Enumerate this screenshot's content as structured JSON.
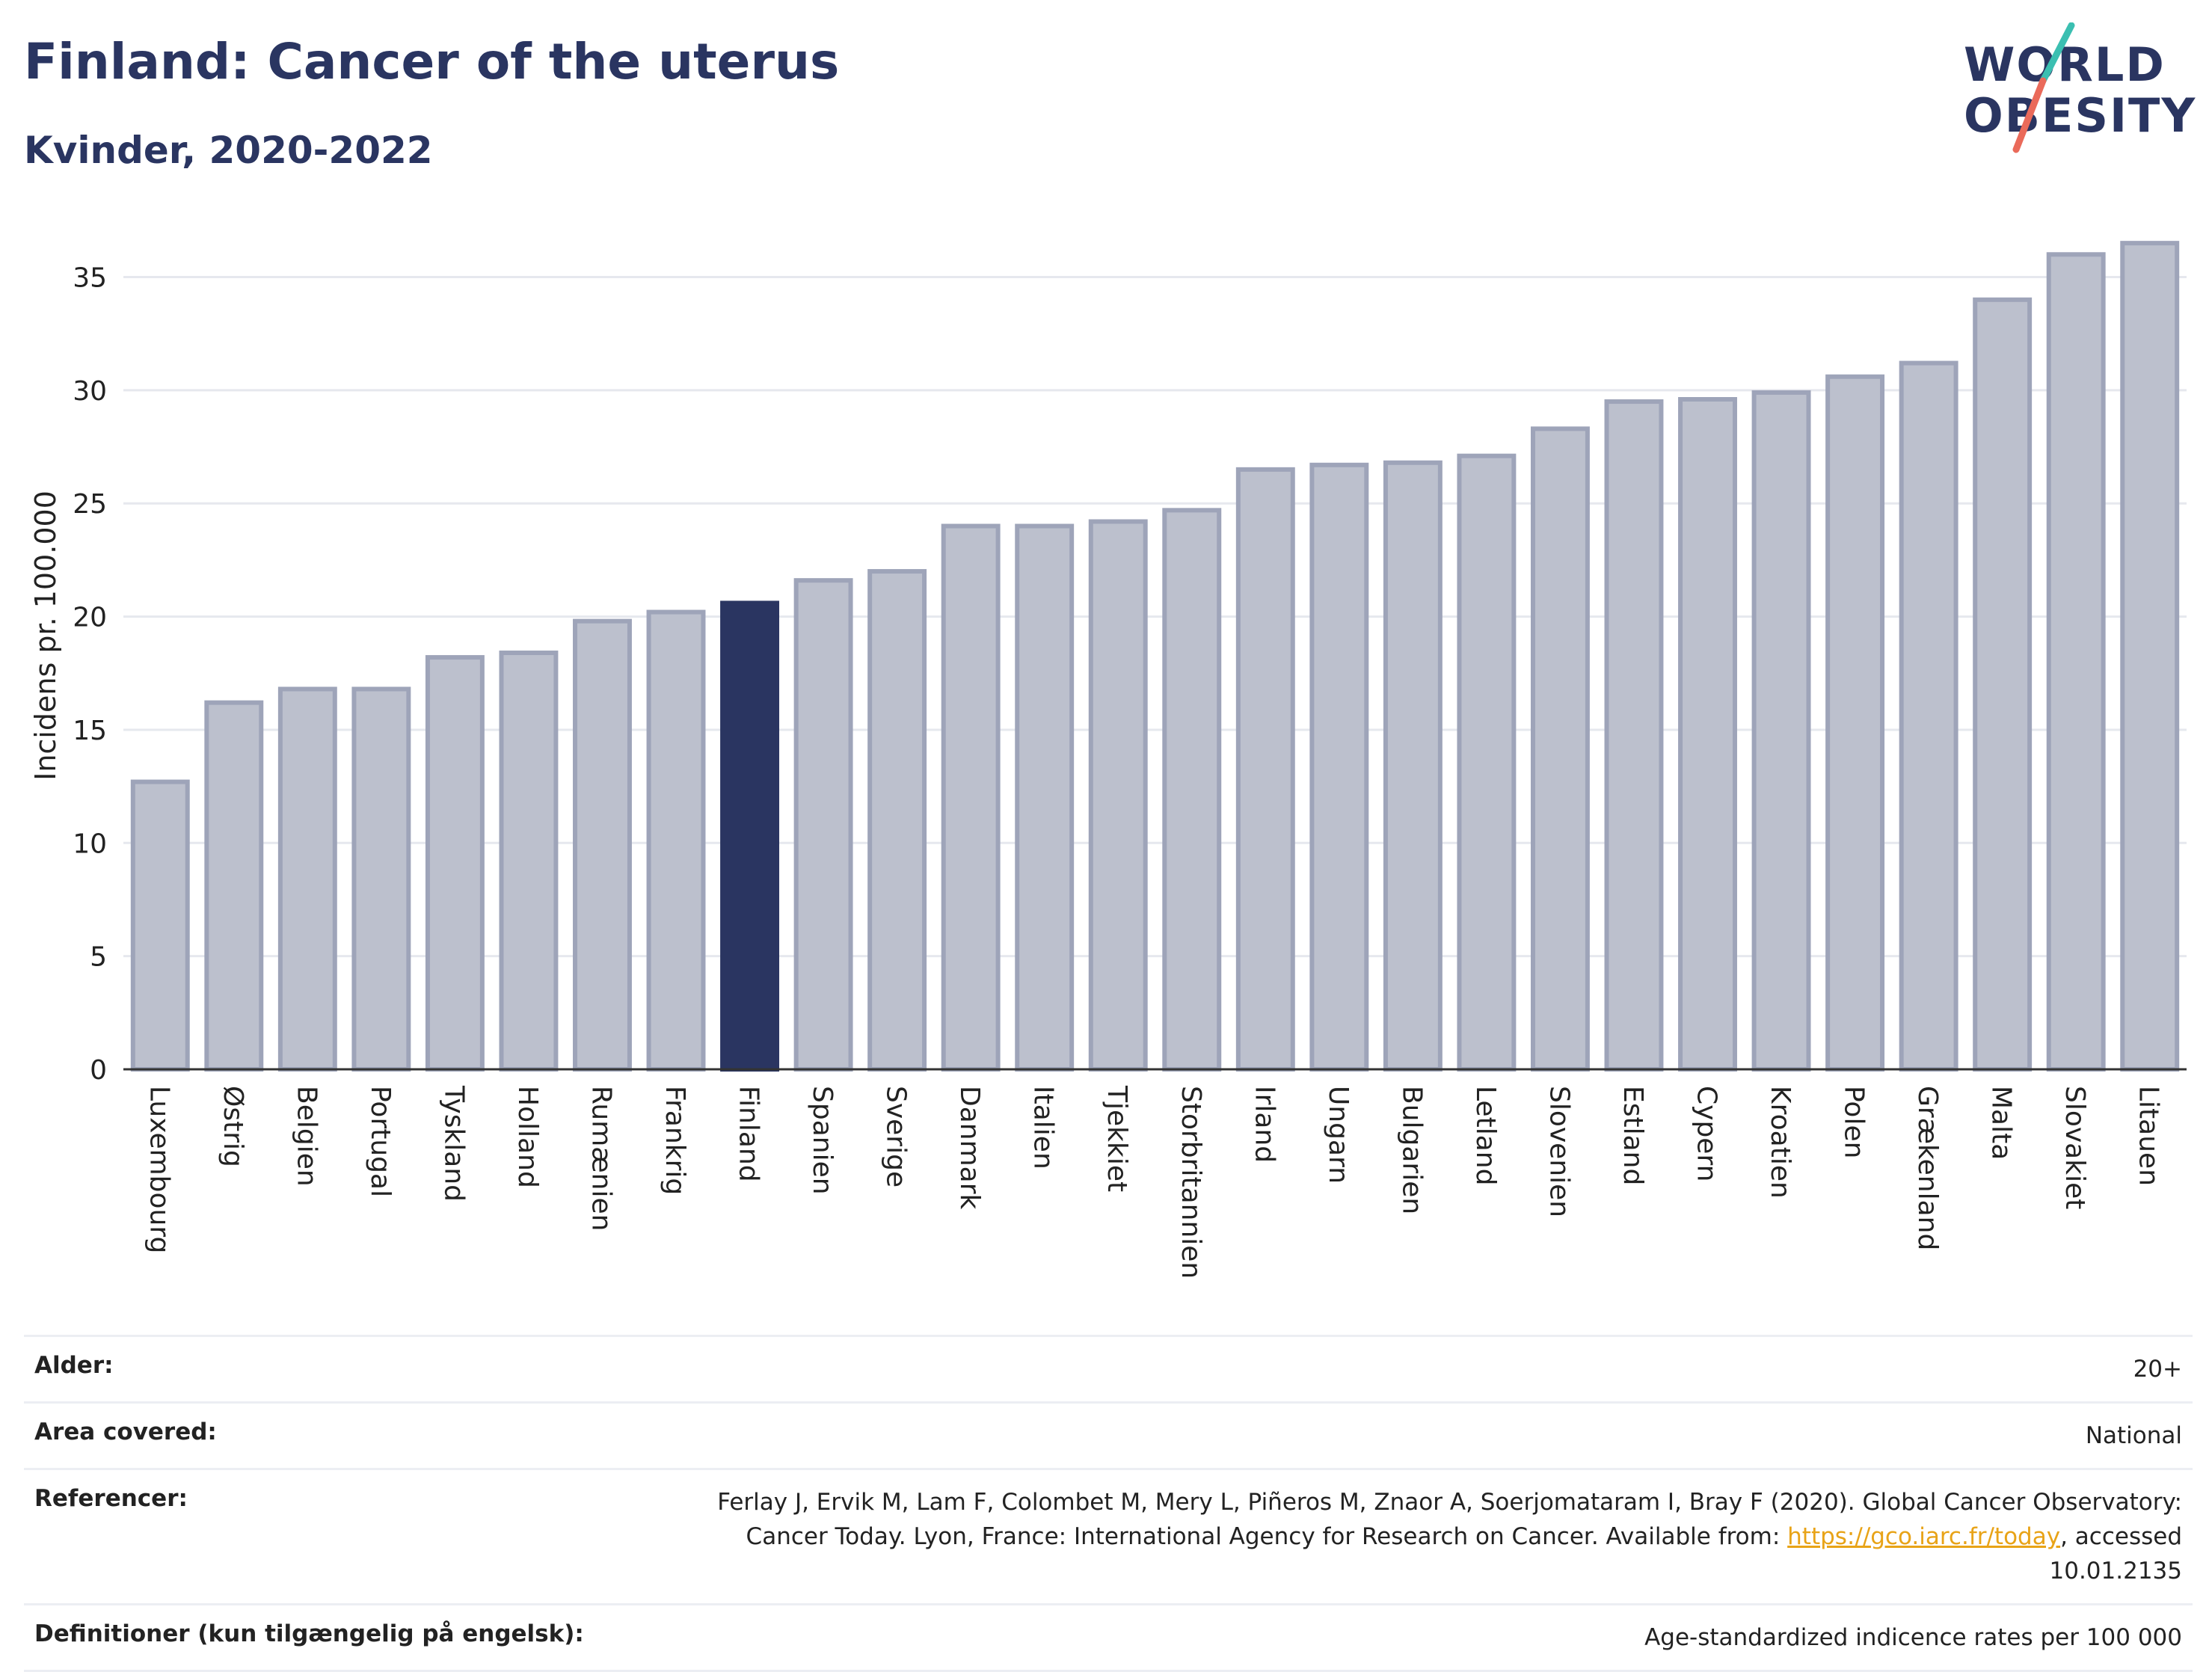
{
  "header": {
    "title": "Finland: Cancer of the uterus",
    "subtitle": "Kvinder, 2020-2022"
  },
  "logo": {
    "line1": "WORLD",
    "line2": "OBESITY"
  },
  "chart_data": {
    "type": "bar",
    "title": "Finland: Cancer of the uterus",
    "subtitle": "Kvinder, 2020-2022",
    "ylabel": "Incidens pr. 100.000",
    "xlabel": "",
    "ylim": [
      0,
      37
    ],
    "yticks": [
      0,
      5,
      10,
      15,
      20,
      25,
      30,
      35
    ],
    "grid": true,
    "highlight": "Finland",
    "colors": {
      "bar": "#bcc0cd",
      "bar_border": "#9ea4b9",
      "highlight": "#2a3561"
    },
    "categories": [
      "Luxembourg",
      "Østrig",
      "Belgien",
      "Portugal",
      "Tyskland",
      "Holland",
      "Rumænien",
      "Frankrig",
      "Finland",
      "Spanien",
      "Sverige",
      "Danmark",
      "Italien",
      "Tjekkiet",
      "Storbritannien",
      "Irland",
      "Ungarn",
      "Bulgarien",
      "Letland",
      "Slovenien",
      "Estland",
      "Cypern",
      "Kroatien",
      "Polen",
      "Grækenland",
      "Malta",
      "Slovakiet",
      "Litauen"
    ],
    "values": [
      12.7,
      16.2,
      16.8,
      16.8,
      18.2,
      18.4,
      19.8,
      20.2,
      20.6,
      21.6,
      22.0,
      24.0,
      24.0,
      24.2,
      24.7,
      26.5,
      26.7,
      26.8,
      27.1,
      28.3,
      29.5,
      29.6,
      29.9,
      30.6,
      31.2,
      34.0,
      36.0,
      36.5
    ]
  },
  "info": {
    "rows": [
      {
        "key": "Alder:",
        "value": "20+"
      },
      {
        "key": "Area covered:",
        "value": "National"
      },
      {
        "key": "Referencer:",
        "value_pre": "Ferlay J, Ervik M, Lam F, Colombet M, Mery L, Piñeros M, Znaor A, Soerjomataram I, Bray F (2020). Global Cancer Observatory: Cancer Today. Lyon, France: International Agency for Research on Cancer. Available from: ",
        "link": "https://gco.iarc.fr/today",
        "value_post": ", accessed 10.01.2135"
      },
      {
        "key": "Definitioner (kun tilgængelig på engelsk):",
        "value": "Age-standardized indicence rates per 100 000"
      }
    ]
  }
}
